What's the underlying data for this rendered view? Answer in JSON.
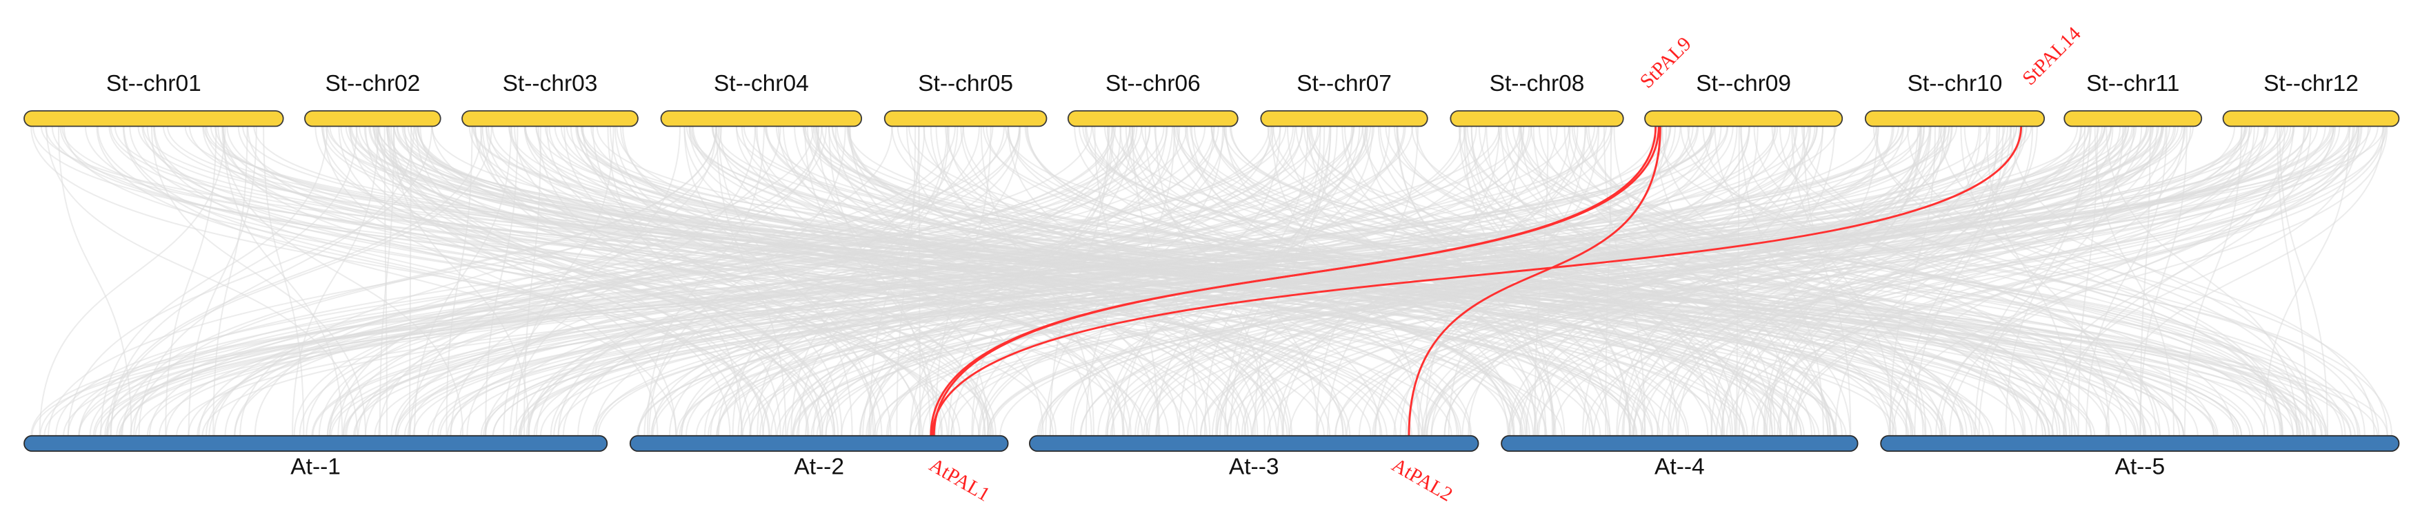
{
  "top_chromosomes": [
    "St--chr01",
    "St--chr02",
    "St--chr03",
    "St--chr04",
    "St--chr05",
    "St--chr06",
    "St--chr07",
    "St--chr08",
    "St--chr09",
    "St--chr10",
    "St--chr11",
    "St--chr12"
  ],
  "bottom_chromosomes": [
    "At--1",
    "At--2",
    "At--3",
    "At--4",
    "At--5"
  ],
  "genes": {
    "top": [
      "StPAL9",
      "StPAL14"
    ],
    "bottom": [
      "AtPAL1",
      "AtPAL2"
    ]
  }
}
